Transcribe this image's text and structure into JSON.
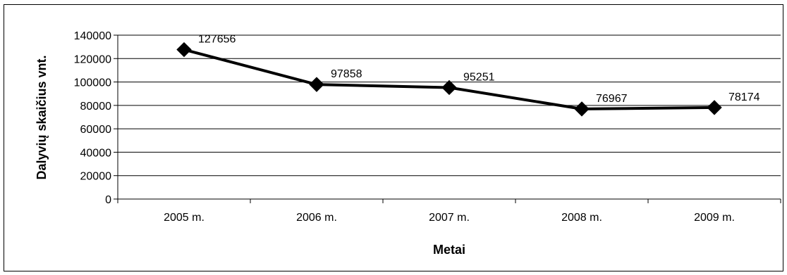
{
  "chart_data": {
    "type": "line",
    "categories": [
      "2005 m.",
      "2006 m.",
      "2007 m.",
      "2008 m.",
      "2009 m."
    ],
    "values": [
      127656,
      97858,
      95251,
      76967,
      78174
    ],
    "data_labels": [
      "127656",
      "97858",
      "95251",
      "76967",
      "78174"
    ],
    "xlabel": "Metai",
    "ylabel": "Dalyvių skaičius vnt.",
    "ylim": [
      0,
      140000
    ],
    "yticks": [
      0,
      20000,
      40000,
      60000,
      80000,
      100000,
      120000,
      140000
    ],
    "ytick_labels": [
      "0",
      "20000",
      "40000",
      "60000",
      "80000",
      "100000",
      "120000",
      "140000"
    ],
    "grid": "horizontal",
    "marker": "diamond",
    "line_color": "#000000"
  }
}
